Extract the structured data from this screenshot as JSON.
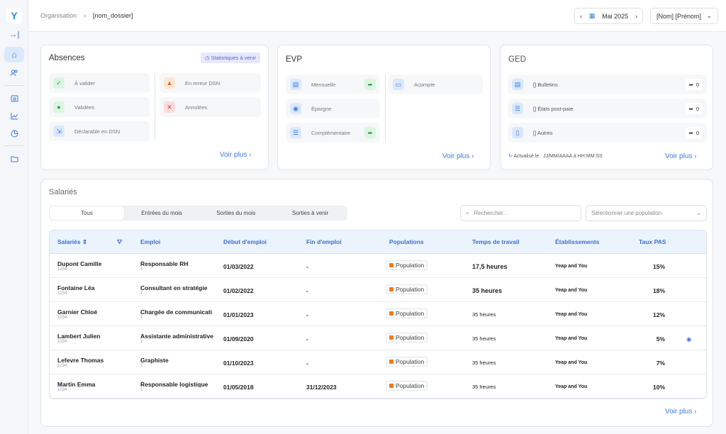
{
  "sidebar": {
    "logo": "Y",
    "items": [
      {
        "icon": "collapse-icon",
        "glyph": "→|"
      },
      {
        "icon": "home-icon",
        "glyph": "⌂"
      },
      {
        "icon": "users-icon",
        "glyph": "👥"
      },
      {
        "icon": "calendar-icon",
        "glyph": "▣"
      },
      {
        "icon": "chart-icon",
        "glyph": "📈"
      },
      {
        "icon": "pie-chart-icon",
        "glyph": "◔"
      },
      {
        "icon": "folder-icon",
        "glyph": "▭"
      }
    ]
  },
  "header": {
    "breadcrumb": [
      "Organisation",
      "[nom_dossier]"
    ],
    "date": "Mai 2025",
    "user": "[Nom] [Prénom]"
  },
  "absences": {
    "title": "Absences",
    "badge": "Statistiques à venir",
    "items": [
      "À valider",
      "Validées",
      "Déclarable en DSN",
      "En erreur DSN",
      "Annulées"
    ],
    "more": "Voir plus"
  },
  "evp": {
    "title": "EVP",
    "items": [
      "Mensuelle",
      "Épargne",
      "Complémentaire",
      "Acompte"
    ],
    "more": "Voir plus"
  },
  "ged": {
    "title": "GED",
    "items": [
      {
        "label": "[] Bulletins",
        "count": "0"
      },
      {
        "label": "[] États post-paie",
        "count": "0"
      },
      {
        "label": "[] Autres",
        "count": "0"
      }
    ],
    "updated": "Actualisé le : JJ/MM/AAAA à HH:MM:SS",
    "more": "Voir plus"
  },
  "salaries": {
    "title": "Salariés",
    "tabs": [
      "Tous",
      "Entrées du mois",
      "Sorties du mois",
      "Sorties à venir"
    ],
    "search_placeholder": "Rechercher...",
    "population_placeholder": "Sélectionner une population",
    "columns": [
      "Salariés",
      "Emploi",
      "Début d'emploi",
      "Fin d'emploi",
      "Populations",
      "Temps de travail",
      "Établissements",
      "Taux PAS"
    ],
    "rows": [
      {
        "name": "Dupont Camille",
        "id": "1234",
        "job": "Responsable RH",
        "job_sub": "1",
        "start": "01/03/2022",
        "end": "-",
        "population": "Population",
        "time": "17,5 heures",
        "site": "Yeap and You",
        "pas": "15%"
      },
      {
        "name": "Fontaine Léa",
        "id": "1234",
        "job": "Consultant en stratégie",
        "job_sub": "1",
        "start": "01/02/2022",
        "end": "-",
        "population": "Population",
        "time": "35 heures",
        "site": "Yeap and You",
        "pas": "18%"
      },
      {
        "name": "Garnier  Chloé",
        "id": "1234",
        "job": "Chargée de communicati",
        "job_sub": "1",
        "start": "01/01/2023",
        "end": "-",
        "population": "Population",
        "time": "35 heures",
        "site": "Yeap and You",
        "pas": "12%"
      },
      {
        "name": "Lambert Julien",
        "id": "1234",
        "job": "Assistante administrative",
        "job_sub": "1",
        "start": "01/09/2020",
        "end": "-",
        "population": "Population",
        "time": "35 heures",
        "site": "Yeap and You",
        "pas": "5%"
      },
      {
        "name": "Lefevre Thomas",
        "id": "1234",
        "job": "Graphiste",
        "job_sub": "1",
        "start": "01/10/2023",
        "end": "-",
        "population": "Population",
        "time": "35 heures",
        "site": "Yeap and You",
        "pas": "7%"
      },
      {
        "name": "Martin Emma",
        "id": "1234",
        "job": "Responsable logistique",
        "job_sub": "1",
        "start": "01/05/2018",
        "end": "31/12/2023",
        "population": "Population",
        "time": "35 heures",
        "site": "Yeap and You",
        "pas": "10%"
      }
    ],
    "more": "Voir plus"
  },
  "colors": {
    "accent": "#3b7be0",
    "population": "#f07a1c"
  }
}
